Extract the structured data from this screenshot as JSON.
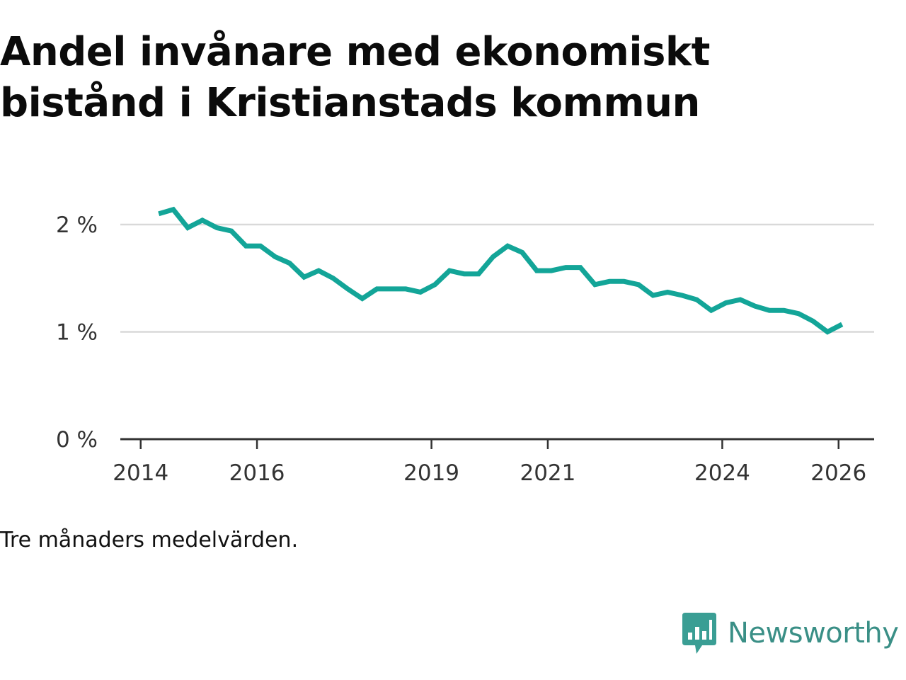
{
  "title": "Andel invånare med ekonomiskt bistånd i Kristianstads kommun",
  "note": "Tre månaders medelvärden.",
  "brand": {
    "name": "Newsworthy",
    "icon": "newsworthy-logo-icon",
    "color": "#3a9e94"
  },
  "colors": {
    "line": "#13a598",
    "grid": "#d9d9d9",
    "axis": "#333333"
  },
  "chart_data": {
    "type": "line",
    "title": "Andel invånare med ekonomiskt bistånd i Kristianstads kommun",
    "xlabel": "",
    "ylabel": "",
    "ylim": [
      0,
      2.0
    ],
    "xlim": [
      2014.0,
      2026.3
    ],
    "y_ticks": [
      {
        "value": 0,
        "label": "0 %"
      },
      {
        "value": 1,
        "label": "1 %"
      },
      {
        "value": 2,
        "label": "2 %"
      }
    ],
    "x_ticks": [
      {
        "value": 2014,
        "label": "2014"
      },
      {
        "value": 2016,
        "label": "2016"
      },
      {
        "value": 2019,
        "label": "2019"
      },
      {
        "value": 2021,
        "label": "2021"
      },
      {
        "value": 2024,
        "label": "2024"
      },
      {
        "value": 2026,
        "label": "2026"
      }
    ],
    "grid": true,
    "series": [
      {
        "name": "Andel invånare med ekonomiskt bistånd",
        "x": [
          2014.31,
          2014.56,
          2014.81,
          2015.06,
          2015.31,
          2015.56,
          2015.81,
          2016.06,
          2016.31,
          2016.56,
          2016.81,
          2017.06,
          2017.31,
          2017.56,
          2017.81,
          2018.06,
          2018.31,
          2018.56,
          2018.81,
          2019.06,
          2019.31,
          2019.56,
          2019.81,
          2020.06,
          2020.31,
          2020.56,
          2020.81,
          2021.06,
          2021.31,
          2021.56,
          2021.81,
          2022.06,
          2022.31,
          2022.56,
          2022.81,
          2023.06,
          2023.31,
          2023.56,
          2023.81,
          2024.06,
          2024.31,
          2024.56,
          2024.81,
          2025.06,
          2025.31,
          2025.56,
          2025.81,
          2026.06
        ],
        "values": [
          2.1,
          2.14,
          1.97,
          2.04,
          1.97,
          1.94,
          1.8,
          1.8,
          1.7,
          1.64,
          1.51,
          1.57,
          1.5,
          1.4,
          1.31,
          1.4,
          1.4,
          1.4,
          1.37,
          1.44,
          1.57,
          1.54,
          1.54,
          1.7,
          1.8,
          1.74,
          1.57,
          1.57,
          1.6,
          1.6,
          1.44,
          1.47,
          1.47,
          1.44,
          1.34,
          1.37,
          1.34,
          1.3,
          1.2,
          1.27,
          1.3,
          1.24,
          1.2,
          1.2,
          1.17,
          1.1,
          1.0,
          1.07
        ]
      }
    ]
  }
}
